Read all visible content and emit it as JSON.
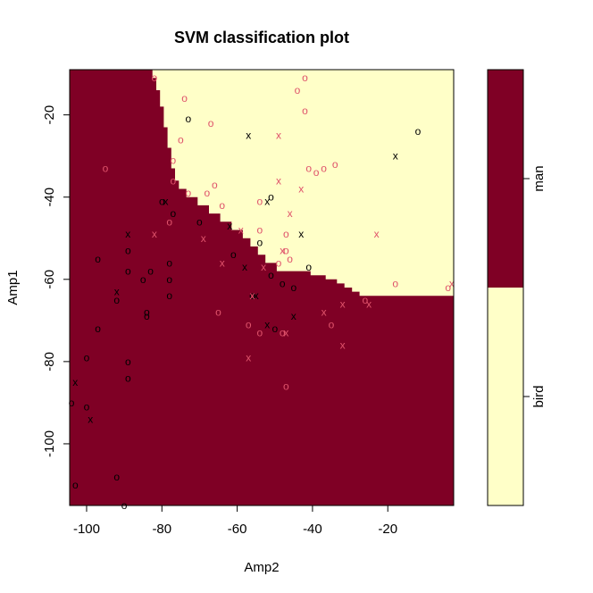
{
  "chart_data": {
    "type": "scatter",
    "title": "SVM classification plot",
    "xlabel": "Amp2",
    "ylabel": "Amp1",
    "xlim": [
      -104.5,
      -2.5
    ],
    "ylim": [
      -115,
      -9
    ],
    "xticks": [
      -100,
      -80,
      -60,
      -40,
      -20
    ],
    "yticks": [
      -20,
      -40,
      -60,
      -80,
      -100
    ],
    "grid": false,
    "colors": {
      "man": "#7f0025",
      "bird": "#ffffc8",
      "support_vector": "#000000",
      "data_point": "#df536b",
      "frame": "#000000"
    },
    "legend": {
      "placement": "right",
      "classes": [
        "man",
        "bird"
      ]
    },
    "decision_boundary": [
      [
        -104.5,
        -9
      ],
      [
        -82.5,
        -9
      ],
      [
        -82.5,
        -11
      ],
      [
        -81.5,
        -11
      ],
      [
        -81.5,
        -14
      ],
      [
        -80.5,
        -14
      ],
      [
        -80.5,
        -18
      ],
      [
        -79.5,
        -18
      ],
      [
        -79.5,
        -23
      ],
      [
        -78.5,
        -23
      ],
      [
        -78.5,
        -28
      ],
      [
        -77.5,
        -28
      ],
      [
        -77.5,
        -33
      ],
      [
        -76.5,
        -33
      ],
      [
        -76.5,
        -36
      ],
      [
        -75.5,
        -36
      ],
      [
        -75.5,
        -38
      ],
      [
        -73.5,
        -38
      ],
      [
        -73.5,
        -40
      ],
      [
        -70.5,
        -40
      ],
      [
        -70.5,
        -42
      ],
      [
        -67.5,
        -42
      ],
      [
        -67.5,
        -44
      ],
      [
        -64.5,
        -44
      ],
      [
        -64.5,
        -46
      ],
      [
        -61.5,
        -46
      ],
      [
        -61.5,
        -48
      ],
      [
        -58.5,
        -48
      ],
      [
        -58.5,
        -50
      ],
      [
        -56.5,
        -50
      ],
      [
        -56.5,
        -52
      ],
      [
        -54.5,
        -52
      ],
      [
        -54.5,
        -54
      ],
      [
        -52.5,
        -54
      ],
      [
        -52.5,
        -56
      ],
      [
        -49.5,
        -56
      ],
      [
        -49.5,
        -58
      ],
      [
        -40.5,
        -58
      ],
      [
        -40.5,
        -59
      ],
      [
        -36.5,
        -59
      ],
      [
        -36.5,
        -60
      ],
      [
        -33.5,
        -60
      ],
      [
        -33.5,
        -61
      ],
      [
        -31.5,
        -61
      ],
      [
        -31.5,
        -62
      ],
      [
        -29.5,
        -62
      ],
      [
        -29.5,
        -63
      ],
      [
        -27.5,
        -63
      ],
      [
        -27.5,
        -64
      ],
      [
        -2.5,
        -64
      ],
      [
        -2.5,
        -115
      ],
      [
        -104.5,
        -115
      ]
    ],
    "points": [
      {
        "x": -73,
        "y": -21,
        "m": "o",
        "sv": true
      },
      {
        "x": -57,
        "y": -25,
        "m": "x",
        "sv": true
      },
      {
        "x": -12,
        "y": -24,
        "m": "o",
        "sv": true
      },
      {
        "x": -18,
        "y": -30,
        "m": "x",
        "sv": true
      },
      {
        "x": -51,
        "y": -40,
        "m": "o",
        "sv": true
      },
      {
        "x": -52,
        "y": -41,
        "m": "x",
        "sv": true
      },
      {
        "x": -80,
        "y": -41,
        "m": "o",
        "sv": true
      },
      {
        "x": -79,
        "y": -41,
        "m": "x",
        "sv": true
      },
      {
        "x": -77,
        "y": -44,
        "m": "o",
        "sv": true
      },
      {
        "x": -70,
        "y": -46,
        "m": "o",
        "sv": true
      },
      {
        "x": -62,
        "y": -47,
        "m": "x",
        "sv": true
      },
      {
        "x": -43,
        "y": -49,
        "m": "x",
        "sv": true
      },
      {
        "x": -54,
        "y": -51,
        "m": "o",
        "sv": true
      },
      {
        "x": -89,
        "y": -49,
        "m": "x",
        "sv": true
      },
      {
        "x": -89,
        "y": -53,
        "m": "o",
        "sv": true
      },
      {
        "x": -97,
        "y": -55,
        "m": "o",
        "sv": true
      },
      {
        "x": -61,
        "y": -54,
        "m": "o",
        "sv": true
      },
      {
        "x": -78,
        "y": -56,
        "m": "o",
        "sv": true
      },
      {
        "x": -41,
        "y": -57,
        "m": "o",
        "sv": true
      },
      {
        "x": -58,
        "y": -57,
        "m": "x",
        "sv": true
      },
      {
        "x": -89,
        "y": -58,
        "m": "o",
        "sv": true
      },
      {
        "x": -83,
        "y": -58,
        "m": "o",
        "sv": true
      },
      {
        "x": -85,
        "y": -60,
        "m": "o",
        "sv": true
      },
      {
        "x": -78,
        "y": -60,
        "m": "o",
        "sv": true
      },
      {
        "x": -51,
        "y": -59,
        "m": "o",
        "sv": true
      },
      {
        "x": -48,
        "y": -61,
        "m": "o",
        "sv": true
      },
      {
        "x": -45,
        "y": -62,
        "m": "o",
        "sv": true
      },
      {
        "x": -92,
        "y": -63,
        "m": "x",
        "sv": true
      },
      {
        "x": -92,
        "y": -65,
        "m": "o",
        "sv": true
      },
      {
        "x": -78,
        "y": -64,
        "m": "o",
        "sv": true
      },
      {
        "x": -56,
        "y": -64,
        "m": "o",
        "sv": true
      },
      {
        "x": -55,
        "y": -64,
        "m": "x",
        "sv": true
      },
      {
        "x": -84,
        "y": -68,
        "m": "o",
        "sv": true
      },
      {
        "x": -84,
        "y": -69,
        "m": "o",
        "sv": true
      },
      {
        "x": -45,
        "y": -69,
        "m": "x",
        "sv": true
      },
      {
        "x": -97,
        "y": -72,
        "m": "o",
        "sv": true
      },
      {
        "x": -52,
        "y": -71,
        "m": "x",
        "sv": true
      },
      {
        "x": -50,
        "y": -72,
        "m": "o",
        "sv": true
      },
      {
        "x": -100,
        "y": -79,
        "m": "o",
        "sv": true
      },
      {
        "x": -89,
        "y": -80,
        "m": "o",
        "sv": true
      },
      {
        "x": -89,
        "y": -84,
        "m": "o",
        "sv": true
      },
      {
        "x": -103,
        "y": -85,
        "m": "x",
        "sv": true
      },
      {
        "x": -100,
        "y": -91,
        "m": "o",
        "sv": true
      },
      {
        "x": -99,
        "y": -94,
        "m": "x",
        "sv": true
      },
      {
        "x": -104,
        "y": -90,
        "m": "o",
        "sv": true
      },
      {
        "x": -92,
        "y": -108,
        "m": "o",
        "sv": true
      },
      {
        "x": -103,
        "y": -110,
        "m": "o",
        "sv": true
      },
      {
        "x": -90,
        "y": -115,
        "m": "o",
        "sv": true
      },
      {
        "x": -82,
        "y": -11,
        "m": "o",
        "sv": false
      },
      {
        "x": -42,
        "y": -11,
        "m": "o",
        "sv": false
      },
      {
        "x": -44,
        "y": -14,
        "m": "o",
        "sv": false
      },
      {
        "x": -74,
        "y": -16,
        "m": "o",
        "sv": false
      },
      {
        "x": -42,
        "y": -19,
        "m": "o",
        "sv": false
      },
      {
        "x": -67,
        "y": -22,
        "m": "o",
        "sv": false
      },
      {
        "x": -49,
        "y": -25,
        "m": "x",
        "sv": false
      },
      {
        "x": -75,
        "y": -26,
        "m": "o",
        "sv": false
      },
      {
        "x": -95,
        "y": -33,
        "m": "o",
        "sv": false
      },
      {
        "x": -77,
        "y": -31,
        "m": "o",
        "sv": false
      },
      {
        "x": -37,
        "y": -33,
        "m": "o",
        "sv": false
      },
      {
        "x": -34,
        "y": -32,
        "m": "o",
        "sv": false
      },
      {
        "x": -41,
        "y": -33,
        "m": "o",
        "sv": false
      },
      {
        "x": -39,
        "y": -34,
        "m": "o",
        "sv": false
      },
      {
        "x": -49,
        "y": -36,
        "m": "x",
        "sv": false
      },
      {
        "x": -77,
        "y": -36,
        "m": "o",
        "sv": false
      },
      {
        "x": -73,
        "y": -39,
        "m": "o",
        "sv": false
      },
      {
        "x": -66,
        "y": -37,
        "m": "o",
        "sv": false
      },
      {
        "x": -68,
        "y": -39,
        "m": "o",
        "sv": false
      },
      {
        "x": -43,
        "y": -38,
        "m": "x",
        "sv": false
      },
      {
        "x": -64,
        "y": -42,
        "m": "o",
        "sv": false
      },
      {
        "x": -54,
        "y": -41,
        "m": "o",
        "sv": false
      },
      {
        "x": -46,
        "y": -44,
        "m": "x",
        "sv": false
      },
      {
        "x": -78,
        "y": -46,
        "m": "o",
        "sv": false
      },
      {
        "x": -59,
        "y": -48,
        "m": "x",
        "sv": false
      },
      {
        "x": -54,
        "y": -48,
        "m": "o",
        "sv": false
      },
      {
        "x": -47,
        "y": -49,
        "m": "o",
        "sv": false
      },
      {
        "x": -82,
        "y": -49,
        "m": "x",
        "sv": false
      },
      {
        "x": -69,
        "y": -50,
        "m": "x",
        "sv": false
      },
      {
        "x": -23,
        "y": -49,
        "m": "x",
        "sv": false
      },
      {
        "x": -47,
        "y": -53,
        "m": "o",
        "sv": false
      },
      {
        "x": -48,
        "y": -53,
        "m": "x",
        "sv": false
      },
      {
        "x": -46,
        "y": -55,
        "m": "o",
        "sv": false
      },
      {
        "x": -64,
        "y": -56,
        "m": "x",
        "sv": false
      },
      {
        "x": -49,
        "y": -56,
        "m": "o",
        "sv": false
      },
      {
        "x": -53,
        "y": -57,
        "m": "x",
        "sv": false
      },
      {
        "x": -18,
        "y": -61,
        "m": "o",
        "sv": false
      },
      {
        "x": -4,
        "y": -62,
        "m": "o",
        "sv": false
      },
      {
        "x": -3,
        "y": -61,
        "m": "x",
        "sv": false
      },
      {
        "x": -56,
        "y": -64,
        "m": "x",
        "sv": false
      },
      {
        "x": -26,
        "y": -65,
        "m": "o",
        "sv": false
      },
      {
        "x": -25,
        "y": -66,
        "m": "x",
        "sv": false
      },
      {
        "x": -32,
        "y": -66,
        "m": "x",
        "sv": false
      },
      {
        "x": -37,
        "y": -68,
        "m": "x",
        "sv": false
      },
      {
        "x": -65,
        "y": -68,
        "m": "o",
        "sv": false
      },
      {
        "x": -57,
        "y": -71,
        "m": "o",
        "sv": false
      },
      {
        "x": -54,
        "y": -73,
        "m": "o",
        "sv": false
      },
      {
        "x": -48,
        "y": -73,
        "m": "o",
        "sv": false
      },
      {
        "x": -47,
        "y": -73,
        "m": "x",
        "sv": false
      },
      {
        "x": -35,
        "y": -71,
        "m": "o",
        "sv": false
      },
      {
        "x": -32,
        "y": -76,
        "m": "x",
        "sv": false
      },
      {
        "x": -57,
        "y": -79,
        "m": "x",
        "sv": false
      },
      {
        "x": -47,
        "y": -86,
        "m": "o",
        "sv": false
      }
    ]
  }
}
